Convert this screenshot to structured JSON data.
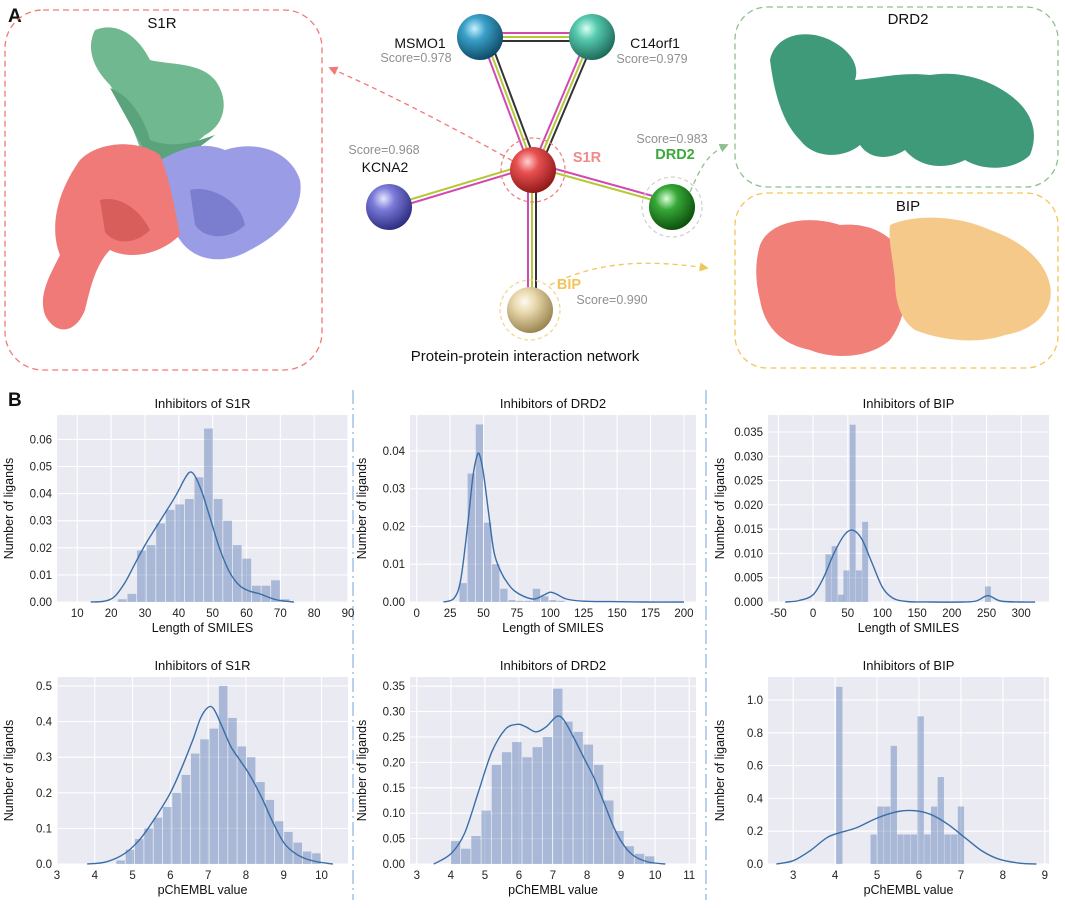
{
  "panel_a": {
    "label": "A",
    "s1r_box_title": "S1R",
    "drd2_box_title": "DRD2",
    "bip_box_title": "BIP",
    "network_caption": "Protein-protein interaction network",
    "nodes": [
      {
        "id": "s1r",
        "label": "S1R",
        "score": "",
        "color": "#d94040",
        "label_color": "#f08a8a"
      },
      {
        "id": "msmo1",
        "label": "MSMO1",
        "score": "Score=0.978",
        "color": "#2f8fb5",
        "label_color": "#111111"
      },
      {
        "id": "c14orf1",
        "label": "C14orf1",
        "score": "Score=0.979",
        "color": "#3fb8a0",
        "label_color": "#111111"
      },
      {
        "id": "kcna2",
        "label": "KCNA2",
        "score": "Score=0.968",
        "color": "#6b6bd0",
        "label_color": "#111111"
      },
      {
        "id": "drd2",
        "label": "DRD2",
        "score": "Score=0.983",
        "color": "#2e9e2e",
        "label_color": "#3aaa3a"
      },
      {
        "id": "bip",
        "label": "BIP",
        "score": "Score=0.990",
        "color": "#e0cfa0",
        "label_color": "#f2c55a"
      }
    ],
    "colors": {
      "s1r_red": "#f07a78",
      "s1r_green": "#6fb890",
      "s1r_blue": "#9a9ce6",
      "drd2_teal": "#3f9a7a",
      "bip_salmon": "#f08078",
      "bip_peach": "#f5c98a",
      "edge_pink": "#d04ab0",
      "edge_olive": "#b5c838",
      "edge_dark": "#333333",
      "score_gray": "#909090"
    }
  },
  "panel_b": {
    "label": "B"
  },
  "chart_data": [
    {
      "id": "h1",
      "type": "bar",
      "title": "Inhibitors of S1R",
      "xlabel": "Length of SMILES",
      "ylabel": "Number of ligands",
      "xlim": [
        4,
        90
      ],
      "ylim": [
        0,
        0.069
      ],
      "xticks": [
        10,
        20,
        30,
        40,
        50,
        60,
        70,
        80,
        90
      ],
      "yticks": [
        0.0,
        0.01,
        0.02,
        0.03,
        0.04,
        0.05,
        0.06
      ],
      "ytick_labels": [
        "0.00",
        "0.01",
        "0.02",
        "0.03",
        "0.04",
        "0.05",
        "0.06"
      ],
      "bin_start": 22,
      "bin_width": 2.83,
      "values": [
        0.001,
        0.003,
        0.019,
        0.021,
        0.029,
        0.034,
        0.036,
        0.038,
        0.046,
        0.064,
        0.038,
        0.03,
        0.021,
        0.016,
        0.006,
        0.006,
        0.008,
        0.001
      ],
      "kde": [
        [
          14,
          0
        ],
        [
          18,
          0.0003
        ],
        [
          21,
          0.002
        ],
        [
          24,
          0.007
        ],
        [
          27,
          0.014
        ],
        [
          30,
          0.021
        ],
        [
          33,
          0.027
        ],
        [
          36,
          0.033
        ],
        [
          39,
          0.039
        ],
        [
          42,
          0.046
        ],
        [
          43.5,
          0.048
        ],
        [
          45,
          0.046
        ],
        [
          47,
          0.04
        ],
        [
          49,
          0.032
        ],
        [
          52,
          0.02
        ],
        [
          55,
          0.011
        ],
        [
          58,
          0.006
        ],
        [
          61,
          0.004
        ],
        [
          64,
          0.003
        ],
        [
          67,
          0.0015
        ],
        [
          70,
          0.0005
        ],
        [
          74,
          0
        ]
      ]
    },
    {
      "id": "h2",
      "type": "bar",
      "title": "Inhibitors of DRD2",
      "xlabel": "Length of SMILES",
      "ylabel": "Number of ligands",
      "xlim": [
        -5,
        209
      ],
      "ylim": [
        0,
        0.0495
      ],
      "xticks": [
        0,
        25,
        50,
        75,
        100,
        125,
        150,
        175,
        200
      ],
      "yticks": [
        0.0,
        0.01,
        0.02,
        0.03,
        0.04
      ],
      "ytick_labels": [
        "0.00",
        "0.01",
        "0.02",
        "0.03",
        "0.04"
      ],
      "bin_start": 32,
      "bin_width": 6.1,
      "values": [
        0.005,
        0.034,
        0.047,
        0.021,
        0.01,
        0.0035,
        0.0005,
        0.0003,
        0.0003,
        0.0035,
        0.0015,
        0.0005,
        0.0003
      ],
      "kde": [
        [
          20,
          0
        ],
        [
          28,
          0.001
        ],
        [
          33,
          0.006
        ],
        [
          38,
          0.02
        ],
        [
          42,
          0.033
        ],
        [
          45,
          0.0385
        ],
        [
          47,
          0.039
        ],
        [
          50,
          0.034
        ],
        [
          54,
          0.023
        ],
        [
          58,
          0.013
        ],
        [
          63,
          0.008
        ],
        [
          68,
          0.005
        ],
        [
          73,
          0.003
        ],
        [
          80,
          0.0015
        ],
        [
          88,
          0.0008
        ],
        [
          95,
          0.0018
        ],
        [
          100,
          0.0026
        ],
        [
          105,
          0.002
        ],
        [
          112,
          0.0008
        ],
        [
          125,
          0.0002
        ],
        [
          145,
          0.0001
        ],
        [
          170,
          0
        ],
        [
          200,
          0
        ]
      ]
    },
    {
      "id": "h3",
      "type": "bar",
      "title": "Inhibitors of BIP",
      "xlabel": "Length of SMILES",
      "ylabel": "Number of ligands",
      "xlim": [
        -65,
        340
      ],
      "ylim": [
        0,
        0.0385
      ],
      "xticks": [
        -50,
        0,
        50,
        100,
        150,
        200,
        250,
        300
      ],
      "yticks": [
        0.0,
        0.005,
        0.01,
        0.015,
        0.02,
        0.025,
        0.03,
        0.035
      ],
      "ytick_labels": [
        "0.000",
        "0.005",
        "0.010",
        "0.015",
        "0.020",
        "0.025",
        "0.030",
        "0.035"
      ],
      "bars": [
        [
          22,
          0.0098
        ],
        [
          31,
          0.0115
        ],
        [
          40,
          0.0015
        ],
        [
          48,
          0.0065
        ],
        [
          57,
          0.0365
        ],
        [
          66,
          0.0065
        ],
        [
          75,
          0.0165
        ],
        [
          252,
          0.0032
        ]
      ],
      "bar_width": 8.5,
      "kde": [
        [
          -40,
          0
        ],
        [
          -20,
          0.0003
        ],
        [
          0,
          0.0015
        ],
        [
          15,
          0.005
        ],
        [
          30,
          0.01
        ],
        [
          45,
          0.0138
        ],
        [
          57,
          0.0148
        ],
        [
          70,
          0.013
        ],
        [
          85,
          0.008
        ],
        [
          100,
          0.003
        ],
        [
          115,
          0.0008
        ],
        [
          135,
          0.0001
        ],
        [
          170,
          0
        ],
        [
          215,
          0
        ],
        [
          235,
          0.0002
        ],
        [
          252,
          0.0013
        ],
        [
          270,
          0.0002
        ],
        [
          300,
          0
        ],
        [
          320,
          0
        ]
      ]
    },
    {
      "id": "h4",
      "type": "bar",
      "title": "Inhibitors of S1R",
      "xlabel": "pChEMBL value",
      "ylabel": "Number of ligands",
      "xlim": [
        3,
        10.7
      ],
      "ylim": [
        0,
        0.525
      ],
      "xticks": [
        3,
        4,
        5,
        6,
        7,
        8,
        9,
        10
      ],
      "yticks": [
        0.0,
        0.1,
        0.2,
        0.3,
        0.4,
        0.5
      ],
      "ytick_labels": [
        "0.0",
        "0.1",
        "0.2",
        "0.3",
        "0.4",
        "0.5"
      ],
      "bin_start": 4.57,
      "bin_width": 0.2467,
      "values": [
        0.01,
        0.04,
        0.07,
        0.1,
        0.13,
        0.16,
        0.2,
        0.25,
        0.31,
        0.35,
        0.38,
        0.5,
        0.41,
        0.33,
        0.3,
        0.23,
        0.18,
        0.12,
        0.09,
        0.06,
        0.035,
        0.03
      ],
      "kde": [
        [
          3.8,
          0
        ],
        [
          4.3,
          0.006
        ],
        [
          4.8,
          0.03
        ],
        [
          5.2,
          0.07
        ],
        [
          5.6,
          0.13
        ],
        [
          6.0,
          0.2
        ],
        [
          6.3,
          0.27
        ],
        [
          6.6,
          0.35
        ],
        [
          6.8,
          0.41
        ],
        [
          7.0,
          0.44
        ],
        [
          7.15,
          0.435
        ],
        [
          7.35,
          0.39
        ],
        [
          7.6,
          0.33
        ],
        [
          7.85,
          0.29
        ],
        [
          8.1,
          0.25
        ],
        [
          8.4,
          0.19
        ],
        [
          8.7,
          0.12
        ],
        [
          9.0,
          0.06
        ],
        [
          9.3,
          0.03
        ],
        [
          9.6,
          0.014
        ],
        [
          9.9,
          0.006
        ],
        [
          10.3,
          0
        ]
      ]
    },
    {
      "id": "h5",
      "type": "bar",
      "title": "Inhibitors of DRD2",
      "xlabel": "pChEMBL value",
      "ylabel": "Number of ligands",
      "xlim": [
        2.8,
        11.2
      ],
      "ylim": [
        0,
        0.368
      ],
      "xticks": [
        3,
        4,
        5,
        6,
        7,
        8,
        9,
        10,
        11
      ],
      "yticks": [
        0.0,
        0.05,
        0.1,
        0.15,
        0.2,
        0.25,
        0.3,
        0.35
      ],
      "ytick_labels": [
        "0.00",
        "0.05",
        "0.10",
        "0.15",
        "0.20",
        "0.25",
        "0.30",
        "0.35"
      ],
      "bin_start": 4.0,
      "bin_width": 0.3,
      "values": [
        0.045,
        0.03,
        0.055,
        0.105,
        0.195,
        0.22,
        0.24,
        0.21,
        0.23,
        0.25,
        0.345,
        0.28,
        0.26,
        0.235,
        0.195,
        0.125,
        0.065,
        0.035,
        0.02,
        0.015
      ],
      "kde": [
        [
          3.5,
          0
        ],
        [
          4.0,
          0.02
        ],
        [
          4.4,
          0.06
        ],
        [
          4.8,
          0.14
        ],
        [
          5.2,
          0.22
        ],
        [
          5.6,
          0.265
        ],
        [
          5.95,
          0.275
        ],
        [
          6.2,
          0.27
        ],
        [
          6.5,
          0.26
        ],
        [
          6.8,
          0.27
        ],
        [
          7.1,
          0.29
        ],
        [
          7.3,
          0.285
        ],
        [
          7.6,
          0.25
        ],
        [
          7.9,
          0.21
        ],
        [
          8.2,
          0.17
        ],
        [
          8.5,
          0.12
        ],
        [
          8.8,
          0.07
        ],
        [
          9.1,
          0.035
        ],
        [
          9.4,
          0.015
        ],
        [
          9.8,
          0.004
        ],
        [
          10.3,
          0
        ]
      ]
    },
    {
      "id": "h6",
      "type": "bar",
      "title": "Inhibitors of BIP",
      "xlabel": "pChEMBL value",
      "ylabel": "Number of ligands",
      "xlim": [
        2.4,
        9.1
      ],
      "ylim": [
        0,
        1.14
      ],
      "xticks": [
        3,
        4,
        5,
        6,
        7,
        8,
        9
      ],
      "yticks": [
        0.0,
        0.2,
        0.4,
        0.6,
        0.8,
        1.0
      ],
      "ytick_labels": [
        "0.0",
        "0.2",
        "0.4",
        "0.6",
        "0.8",
        "1.0"
      ],
      "bars": [
        [
          4.1,
          1.08
        ],
        [
          4.92,
          0.18
        ],
        [
          5.08,
          0.35
        ],
        [
          5.24,
          0.35
        ],
        [
          5.4,
          0.72
        ],
        [
          5.56,
          0.18
        ],
        [
          5.72,
          0.18
        ],
        [
          5.88,
          0.18
        ],
        [
          6.04,
          0.9
        ],
        [
          6.2,
          0.18
        ],
        [
          6.36,
          0.35
        ],
        [
          6.52,
          0.53
        ],
        [
          6.68,
          0.18
        ],
        [
          6.84,
          0.18
        ],
        [
          7.0,
          0.35
        ]
      ],
      "bar_width": 0.15,
      "kde": [
        [
          2.6,
          0
        ],
        [
          3.0,
          0.02
        ],
        [
          3.4,
          0.08
        ],
        [
          3.8,
          0.16
        ],
        [
          4.1,
          0.19
        ],
        [
          4.5,
          0.22
        ],
        [
          5.0,
          0.28
        ],
        [
          5.5,
          0.32
        ],
        [
          5.9,
          0.325
        ],
        [
          6.3,
          0.3
        ],
        [
          6.7,
          0.24
        ],
        [
          7.1,
          0.16
        ],
        [
          7.5,
          0.08
        ],
        [
          7.9,
          0.03
        ],
        [
          8.4,
          0.005
        ],
        [
          8.8,
          0
        ]
      ]
    }
  ]
}
